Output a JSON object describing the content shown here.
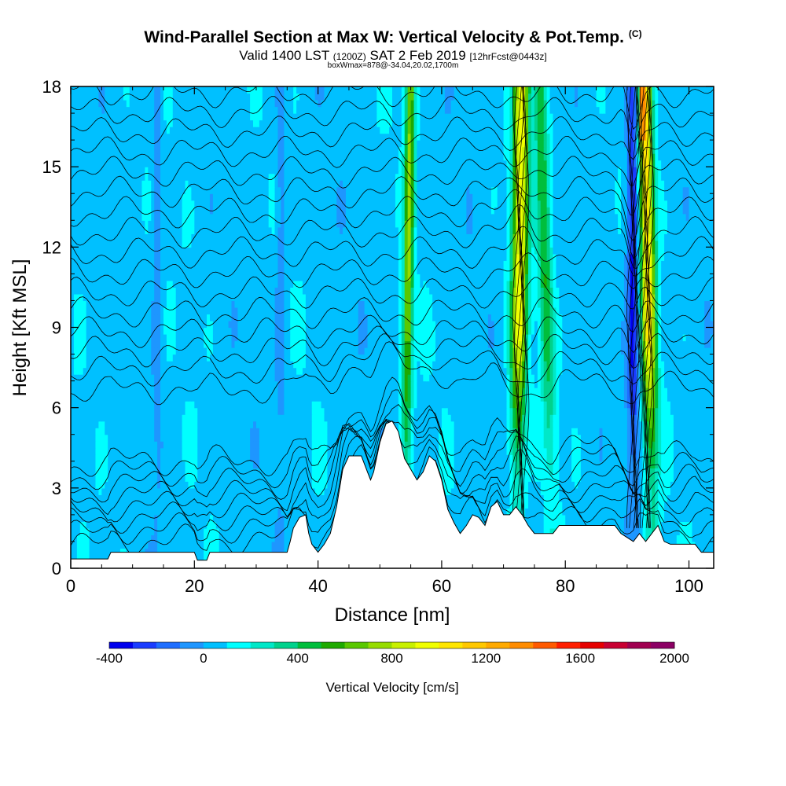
{
  "header": {
    "title": "Wind-Parallel Section at Max W: Vertical Velocity & Pot.Temp.",
    "copyright": "(C)",
    "valid_a": "Valid 1400 LST",
    "valid_z": "(1200Z)",
    "valid_b": "SAT 2 Feb 2019",
    "forecast": "[12hrFcst@0443z]",
    "box_info": "boxWmax=878@-34.04,20.02,1700m"
  },
  "chart_data": {
    "type": "heatmap",
    "xlabel": "Distance [nm]",
    "ylabel": "Height [Kft MSL]",
    "xlim": [
      0,
      104
    ],
    "ylim": [
      0,
      18
    ],
    "x_ticks": [
      0,
      20,
      40,
      60,
      80,
      100
    ],
    "y_ticks": [
      0,
      3,
      6,
      9,
      12,
      15,
      18
    ],
    "colorbar": {
      "title": "Vertical Velocity [cm/s]",
      "min": -400,
      "max": 2000,
      "step": 100,
      "labels": [
        -400,
        0,
        400,
        800,
        1200,
        1600,
        2000
      ],
      "colors": [
        "#0000ee",
        "#1a3cff",
        "#1e6eff",
        "#1e96ff",
        "#00c0ff",
        "#00ffff",
        "#00e8c8",
        "#00d28c",
        "#00be3c",
        "#1eaa00",
        "#5ac800",
        "#96dc00",
        "#c8f000",
        "#f0ff00",
        "#ffe600",
        "#ffc800",
        "#ffaa00",
        "#ff8c00",
        "#ff5a00",
        "#ff1e00",
        "#e60000",
        "#c80032",
        "#a00050",
        "#8c0064"
      ]
    },
    "updraft_cores_nm": [
      54.5,
      72.5,
      77,
      93.5
    ],
    "downdraft_cores_nm": [
      91,
      34,
      14
    ],
    "terrain_kft": [
      [
        0,
        0.35
      ],
      [
        6,
        0.35
      ],
      [
        6.5,
        0.6
      ],
      [
        20,
        0.6
      ],
      [
        20.5,
        0.3
      ],
      [
        22,
        0.3
      ],
      [
        22.5,
        0.6
      ],
      [
        35,
        0.6
      ],
      [
        35.5,
        1.0
      ],
      [
        36,
        1.5
      ],
      [
        37,
        1.9
      ],
      [
        38,
        2.0
      ],
      [
        38.5,
        1.3
      ],
      [
        39,
        0.9
      ],
      [
        40,
        0.6
      ],
      [
        41,
        0.9
      ],
      [
        42,
        1.3
      ],
      [
        43,
        2.3
      ],
      [
        44,
        3.7
      ],
      [
        45,
        4.2
      ],
      [
        47,
        4.2
      ],
      [
        48,
        3.6
      ],
      [
        48.5,
        3.3
      ],
      [
        49,
        3.6
      ],
      [
        50,
        4.7
      ],
      [
        51,
        5.4
      ],
      [
        52,
        5.5
      ],
      [
        53,
        5.1
      ],
      [
        53.5,
        4.6
      ],
      [
        54,
        4.1
      ],
      [
        55,
        3.7
      ],
      [
        56,
        3.3
      ],
      [
        57,
        3.6
      ],
      [
        58,
        4.2
      ],
      [
        59,
        4.0
      ],
      [
        60,
        3.3
      ],
      [
        61,
        2.2
      ],
      [
        62,
        1.7
      ],
      [
        63,
        1.3
      ],
      [
        64,
        1.6
      ],
      [
        65,
        2.0
      ],
      [
        66,
        1.9
      ],
      [
        67,
        1.6
      ],
      [
        68,
        2.3
      ],
      [
        69,
        2.5
      ],
      [
        70,
        2.0
      ],
      [
        71,
        2.0
      ],
      [
        72,
        2.3
      ],
      [
        73,
        2.0
      ],
      [
        74,
        1.6
      ],
      [
        75,
        1.3
      ],
      [
        78,
        1.3
      ],
      [
        79,
        1.6
      ],
      [
        88,
        1.6
      ],
      [
        89,
        1.3
      ],
      [
        91,
        1.0
      ],
      [
        92,
        1.3
      ],
      [
        93,
        1.0
      ],
      [
        94,
        1.3
      ],
      [
        95,
        1.6
      ],
      [
        96,
        1.0
      ],
      [
        97,
        0.9
      ],
      [
        101,
        0.9
      ],
      [
        102,
        0.6
      ],
      [
        104,
        0.6
      ]
    ]
  }
}
